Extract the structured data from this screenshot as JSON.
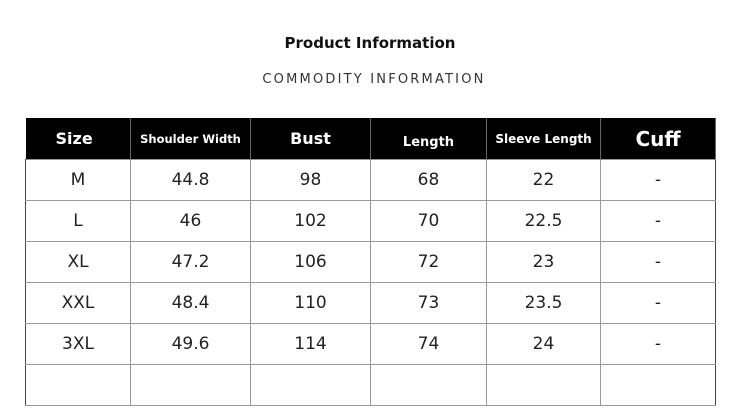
{
  "title": "Product Information",
  "subtitle": "COMMODITY INFORMATION",
  "table": {
    "headers": [
      "Size",
      "Shoulder Width",
      "Bust",
      "Length",
      "Sleeve Length",
      "Cuff"
    ],
    "rows": [
      [
        "M",
        "44.8",
        "98",
        "68",
        "22",
        "-"
      ],
      [
        "L",
        "46",
        "102",
        "70",
        "22.5",
        "-"
      ],
      [
        "XL",
        "47.2",
        "106",
        "72",
        "23",
        "-"
      ],
      [
        "XXL",
        "48.4",
        "110",
        "73",
        "23.5",
        "-"
      ],
      [
        "3XL",
        "49.6",
        "114",
        "74",
        "24",
        "-"
      ],
      [
        "",
        "",
        "",
        "",
        "",
        ""
      ]
    ]
  }
}
